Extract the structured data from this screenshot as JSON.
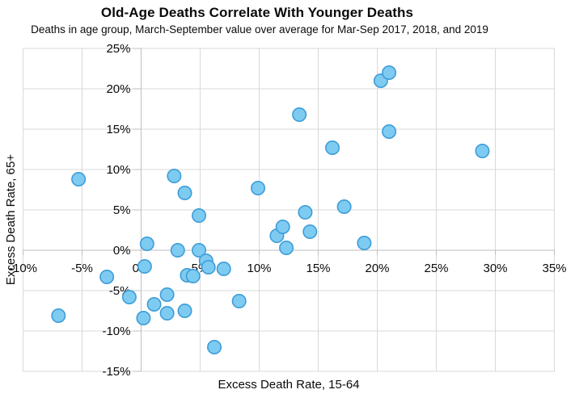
{
  "chart_data": {
    "type": "scatter",
    "title": "Old-Age Deaths Correlate With Younger Deaths",
    "subtitle": "Deaths in age group, March-September value over average for Mar-Sep 2017, 2018, and 2019",
    "xlabel": "Excess Death Rate, 15-64",
    "ylabel": "Excess Death Rate, 65+",
    "xlim": [
      -10,
      35
    ],
    "ylim": [
      -15,
      25
    ],
    "tick_step": 5,
    "x_tick_labels": [
      "-10%",
      "-5%",
      "0%",
      "5%",
      "10%",
      "15%",
      "20%",
      "25%",
      "30%",
      "35%"
    ],
    "y_tick_labels": [
      "25%",
      "20%",
      "15%",
      "10%",
      "5%",
      "0%",
      "-5%",
      "-10%",
      "-15%"
    ],
    "grid": true,
    "legend": false,
    "points": [
      [
        -7.0,
        -8.1
      ],
      [
        -5.3,
        8.8
      ],
      [
        -2.9,
        -3.3
      ],
      [
        -1.0,
        -5.8
      ],
      [
        0.2,
        -8.4
      ],
      [
        0.3,
        -2.0
      ],
      [
        0.5,
        0.8
      ],
      [
        1.1,
        -6.7
      ],
      [
        2.2,
        -5.5
      ],
      [
        2.2,
        -7.8
      ],
      [
        2.8,
        9.2
      ],
      [
        3.1,
        0.0
      ],
      [
        3.7,
        7.1
      ],
      [
        3.7,
        -7.5
      ],
      [
        3.9,
        -3.1
      ],
      [
        4.4,
        -3.2
      ],
      [
        4.9,
        4.3
      ],
      [
        4.9,
        0.0
      ],
      [
        5.5,
        -1.3
      ],
      [
        5.7,
        -2.1
      ],
      [
        6.2,
        -12.0
      ],
      [
        7.0,
        -2.3
      ],
      [
        8.3,
        -6.3
      ],
      [
        9.9,
        7.7
      ],
      [
        11.5,
        1.8
      ],
      [
        12.0,
        2.9
      ],
      [
        12.3,
        0.3
      ],
      [
        13.4,
        16.8
      ],
      [
        13.9,
        4.7
      ],
      [
        14.3,
        2.3
      ],
      [
        16.2,
        12.7
      ],
      [
        17.2,
        5.4
      ],
      [
        18.9,
        0.9
      ],
      [
        20.3,
        21.0
      ],
      [
        21.0,
        22.0
      ],
      [
        21.0,
        14.7
      ],
      [
        28.9,
        12.3
      ]
    ]
  },
  "style": {
    "marker_fill": "#7ECBF1",
    "marker_stroke": "#3E9DD8",
    "gridline_color": "#D9D9D9",
    "plot_border_color": "#D9D9D9",
    "axis_color": "#BFBFBF",
    "text_color": "#0A0A0A"
  }
}
